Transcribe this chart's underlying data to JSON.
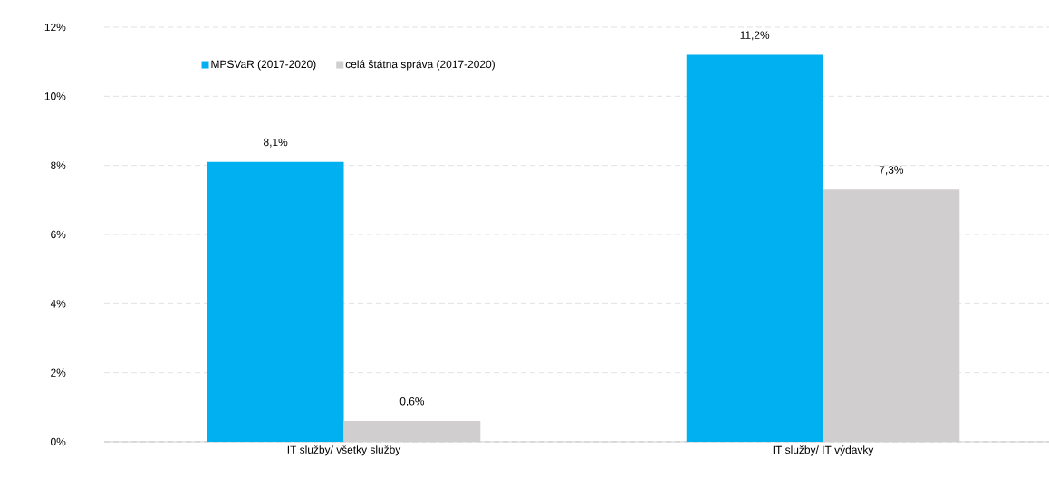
{
  "chart_data": {
    "type": "bar",
    "categories": [
      "IT služby/ všetky služby",
      "IT služby/ IT výdavky"
    ],
    "series": [
      {
        "name": "MPSVaR (2017-2020)",
        "color": "#00b0f0",
        "values": [
          8.1,
          11.2
        ],
        "value_labels": [
          "8,1%",
          "11,2%"
        ]
      },
      {
        "name": "celá štátna správa (2017-2020)",
        "color": "#d0cece",
        "values": [
          0.6,
          7.3
        ],
        "value_labels": [
          "0,6%",
          "7,3%"
        ]
      }
    ],
    "ylim": [
      0,
      12
    ],
    "yticks": [
      {
        "value": 0,
        "label": "0%"
      },
      {
        "value": 2,
        "label": "2%"
      },
      {
        "value": 4,
        "label": "4%"
      },
      {
        "value": 6,
        "label": "6%"
      },
      {
        "value": 8,
        "label": "8%"
      },
      {
        "value": 10,
        "label": "10%"
      },
      {
        "value": 12,
        "label": "12%"
      }
    ],
    "grid": "y",
    "legend": "top left"
  }
}
